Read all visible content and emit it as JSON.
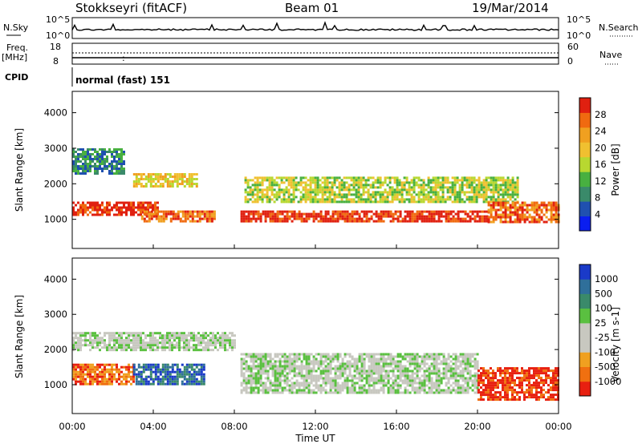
{
  "header": {
    "station": "Stokkseyri (fitACF)",
    "beam": "Beam 01",
    "date": "19/Mar/2014"
  },
  "top_panels": {
    "nsky_label": "N.Sky",
    "nsky_ticks": [
      "10^5",
      "10^0"
    ],
    "nsearch_label": "N.Search",
    "nsearch_ticks": [
      "10^5",
      "10^0"
    ],
    "freq_label": "Freq.",
    "freq_unit": "[MHz]",
    "freq_ticks": [
      "18",
      "8"
    ],
    "nave_label": "Nave",
    "nave_ticks": [
      "60",
      "0"
    ],
    "cpid_label": "CPID",
    "cpid_text": "normal (fast) 151"
  },
  "chart_data": [
    {
      "type": "heatmap",
      "ylabel": "Slant Range [km]",
      "xlabel": "Time UT",
      "y_ticks": [
        "1000",
        "2000",
        "3000",
        "4000"
      ],
      "ylim": [
        180,
        4600
      ],
      "x_ticks": [
        "00:00",
        "04:00",
        "08:00",
        "12:00",
        "16:00",
        "20:00",
        "00:00"
      ],
      "xlim_hours": [
        0,
        24
      ],
      "colorbar": {
        "label": "Power [dB]",
        "ticks": [
          "4",
          "8",
          "12",
          "16",
          "20",
          "24",
          "28"
        ],
        "colors": [
          "#0a1ef0",
          "#2050b0",
          "#3a8a6a",
          "#48b040",
          "#b8d830",
          "#f0c030",
          "#f0a020",
          "#f06a10",
          "#e02010"
        ]
      },
      "scatter_bands": [
        {
          "t0": 0.0,
          "t1": 4.2,
          "r0": 1100,
          "r1": 1500,
          "level": 8
        },
        {
          "t0": 3.4,
          "t1": 7.0,
          "r0": 950,
          "r1": 1250,
          "level": 7
        },
        {
          "t0": 3.0,
          "t1": 6.2,
          "r0": 1900,
          "r1": 2300,
          "level": 5
        },
        {
          "t0": 8.3,
          "t1": 20.5,
          "r0": 950,
          "r1": 1250,
          "level": 8
        },
        {
          "t0": 8.5,
          "t1": 22.0,
          "r0": 1500,
          "r1": 2200,
          "level": 4
        },
        {
          "t0": 20.5,
          "t1": 24.0,
          "r0": 900,
          "r1": 1500,
          "level": 7
        },
        {
          "t0": 0.0,
          "t1": 2.5,
          "r0": 2300,
          "r1": 3000,
          "level": 2
        }
      ]
    },
    {
      "type": "heatmap",
      "ylabel": "Slant Range [km]",
      "xlabel": "Time UT",
      "y_ticks": [
        "1000",
        "2000",
        "3000",
        "4000"
      ],
      "ylim": [
        180,
        4600
      ],
      "x_ticks": [
        "00:00",
        "04:00",
        "08:00",
        "12:00",
        "16:00",
        "20:00",
        "00:00"
      ],
      "xlim_hours": [
        0,
        24
      ],
      "colorbar": {
        "label": "Velocity [m s-1]",
        "ticks": [
          "1000",
          "500",
          "100",
          "25",
          "-25",
          "-100",
          "-500",
          "-1000"
        ],
        "colors": [
          "#1a3ac8",
          "#2f6f9a",
          "#3a8a6a",
          "#5ac040",
          "#c8c8c0",
          "#c8c8c0",
          "#f0a020",
          "#f07010",
          "#e82010"
        ]
      },
      "scatter_bands": [
        {
          "t0": 0.0,
          "t1": 3.0,
          "r0": 1000,
          "r1": 1600,
          "level": 7
        },
        {
          "t0": 3.0,
          "t1": 6.5,
          "r0": 1000,
          "r1": 1600,
          "level": 1
        },
        {
          "t0": 8.3,
          "t1": 20.0,
          "r0": 800,
          "r1": 1900,
          "level": 4
        },
        {
          "t0": 0.0,
          "t1": 8.0,
          "r0": 2000,
          "r1": 2500,
          "level": 4
        },
        {
          "t0": 20.0,
          "t1": 24.0,
          "r0": 600,
          "r1": 1500,
          "level": 8
        }
      ]
    }
  ]
}
